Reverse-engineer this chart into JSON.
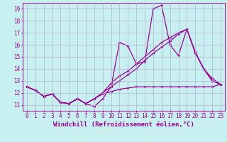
{
  "background_color": "#c8f0f0",
  "grid_color": "#b0b0cc",
  "line_color": "#990099",
  "xlim": [
    -0.5,
    23.5
  ],
  "ylim": [
    10.5,
    19.5
  ],
  "xticks": [
    0,
    1,
    2,
    3,
    4,
    5,
    6,
    7,
    8,
    9,
    10,
    11,
    12,
    13,
    14,
    15,
    16,
    17,
    18,
    19,
    20,
    21,
    22,
    23
  ],
  "yticks": [
    11,
    12,
    13,
    14,
    15,
    16,
    17,
    18,
    19
  ],
  "line1_x": [
    0,
    1,
    2,
    3,
    4,
    5,
    6,
    7,
    8,
    9,
    10,
    11,
    12,
    13,
    14,
    15,
    16,
    17,
    18,
    19,
    20,
    21,
    22,
    23
  ],
  "line1_y": [
    12.5,
    12.2,
    11.7,
    11.9,
    11.2,
    11.1,
    11.5,
    11.1,
    10.85,
    11.5,
    12.5,
    16.2,
    15.9,
    14.4,
    14.6,
    19.0,
    19.3,
    16.0,
    15.1,
    17.3,
    15.4,
    14.0,
    13.2,
    12.7
  ],
  "line2_x": [
    0,
    1,
    2,
    3,
    4,
    5,
    6,
    7,
    8,
    9,
    10,
    11,
    12,
    13,
    14,
    15,
    16,
    17,
    18,
    19,
    20,
    21,
    22,
    23
  ],
  "line2_y": [
    12.5,
    12.2,
    11.7,
    11.9,
    11.2,
    11.1,
    11.5,
    11.1,
    11.5,
    12.0,
    12.8,
    13.4,
    13.8,
    14.4,
    15.0,
    15.6,
    16.2,
    16.6,
    17.0,
    17.3,
    15.3,
    14.0,
    13.0,
    12.7
  ],
  "line3_x": [
    0,
    1,
    2,
    3,
    4,
    5,
    6,
    7,
    8,
    9,
    10,
    11,
    12,
    13,
    14,
    15,
    16,
    17,
    18,
    19,
    20,
    21,
    22,
    23
  ],
  "line3_y": [
    12.5,
    12.2,
    11.7,
    11.9,
    11.2,
    11.1,
    11.5,
    11.1,
    11.5,
    11.9,
    12.1,
    12.3,
    12.4,
    12.5,
    12.5,
    12.5,
    12.5,
    12.5,
    12.5,
    12.5,
    12.5,
    12.5,
    12.5,
    12.7
  ],
  "line4_x": [
    0,
    1,
    2,
    3,
    4,
    5,
    6,
    7,
    8,
    9,
    10,
    11,
    12,
    13,
    14,
    15,
    16,
    17,
    18,
    19,
    20,
    21,
    22,
    23
  ],
  "line4_y": [
    12.5,
    12.2,
    11.7,
    11.9,
    11.2,
    11.1,
    11.5,
    11.1,
    11.5,
    12.0,
    12.5,
    13.0,
    13.5,
    14.0,
    14.7,
    15.3,
    15.8,
    16.3,
    16.9,
    17.3,
    15.4,
    14.0,
    13.0,
    12.7
  ],
  "xlabel": "Windchill (Refroidissement éolien,°C)",
  "tick_labelsize": 5.5,
  "xlabel_fontsize": 6.5
}
